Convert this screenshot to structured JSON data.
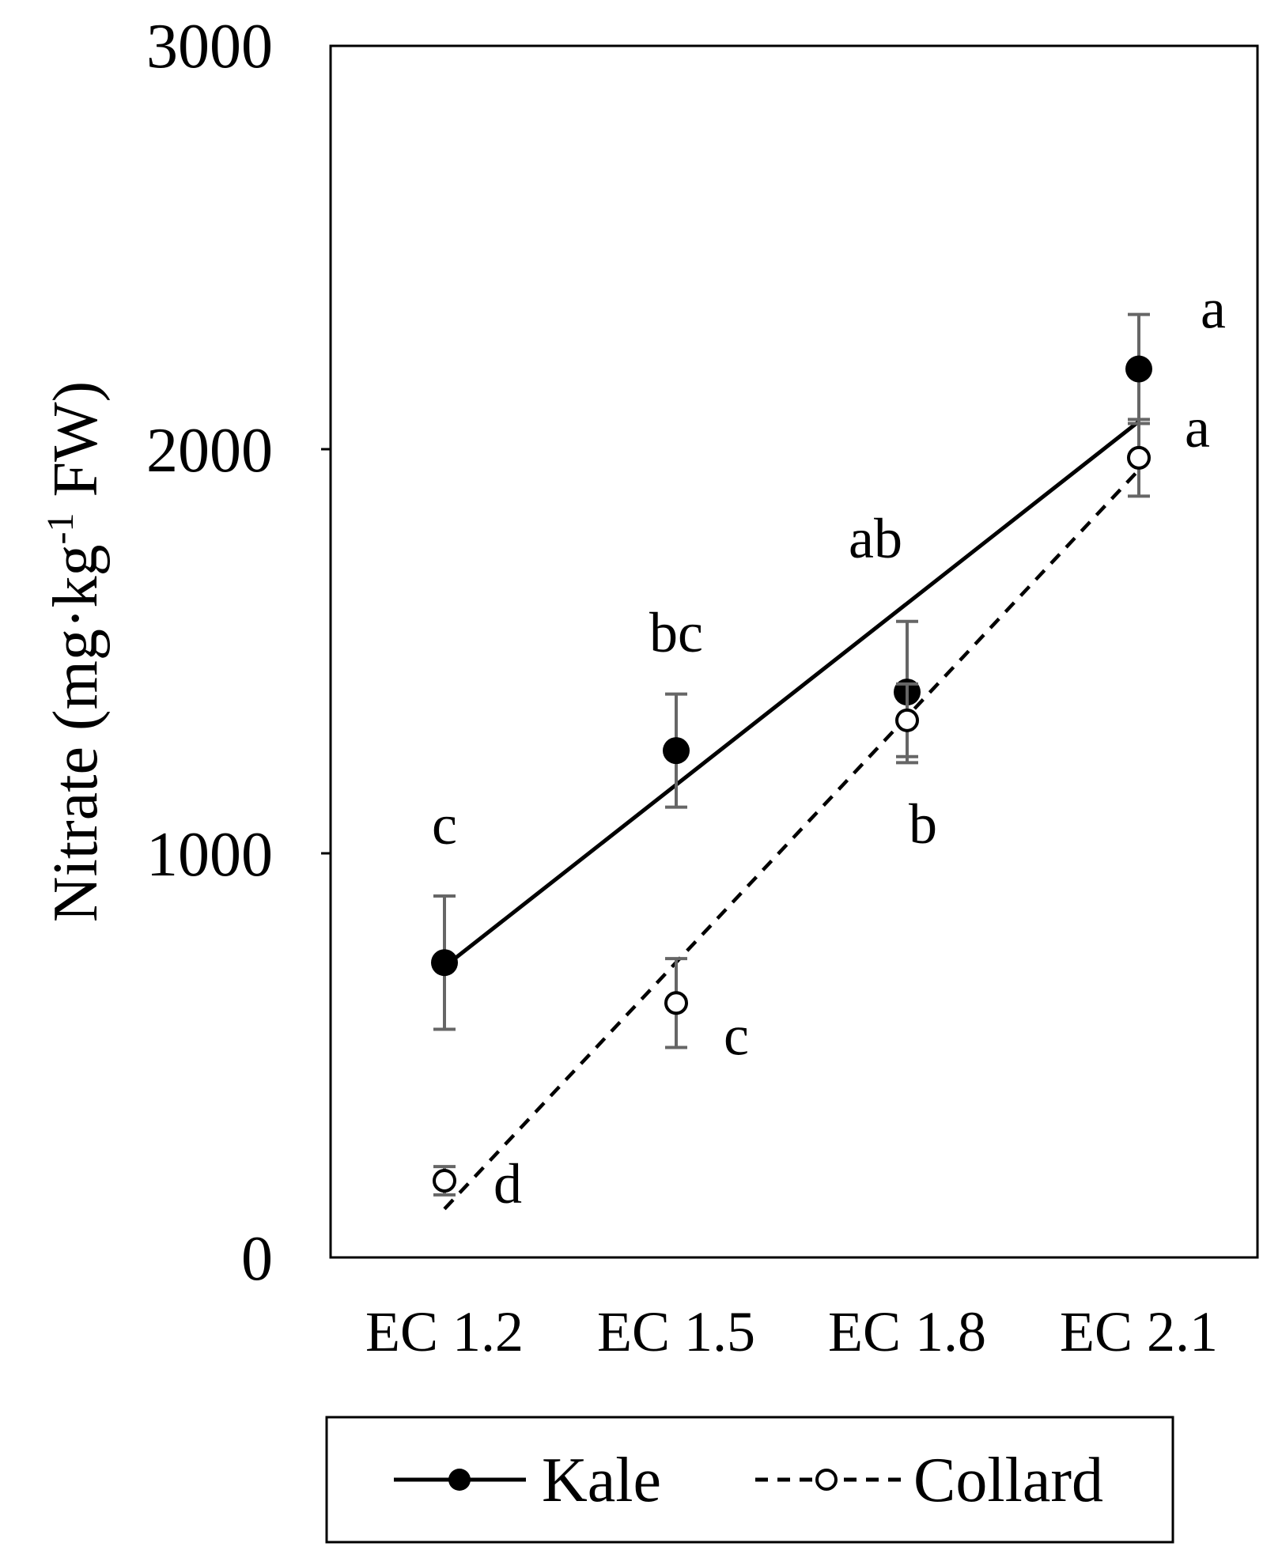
{
  "colors": {
    "axis": "#000000",
    "error_bar": "#666666",
    "background": "#ffffff"
  },
  "chart_data": {
    "type": "scatter",
    "categories": [
      "EC 1.2",
      "EC 1.5",
      "EC 1.8",
      "EC 2.1"
    ],
    "ylabel": "Nitrate (mg·kg",
    "ylabel_sup": "-1",
    "ylabel_tail": " FW)",
    "ylim": [
      0,
      3000
    ],
    "yticks": [
      "0",
      "1000",
      "2000",
      "3000"
    ],
    "grid": false,
    "legend_position": "bottom",
    "series": [
      {
        "name": "Kale",
        "marker": "filled-circle",
        "line_style": "solid",
        "values": [
          730,
          1255,
          1400,
          2200
        ],
        "errors": [
          165,
          140,
          175,
          135
        ],
        "trend": [
          720,
          2070
        ],
        "labels": [
          "c",
          "bc",
          "ab",
          "a"
        ]
      },
      {
        "name": "Collard",
        "marker": "open-circle",
        "line_style": "dashed",
        "values": [
          190,
          630,
          1330,
          1980
        ],
        "errors": [
          35,
          110,
          90,
          95
        ],
        "trend": [
          120,
          1950
        ],
        "labels": [
          "d",
          "c",
          "b",
          "a"
        ]
      }
    ]
  }
}
